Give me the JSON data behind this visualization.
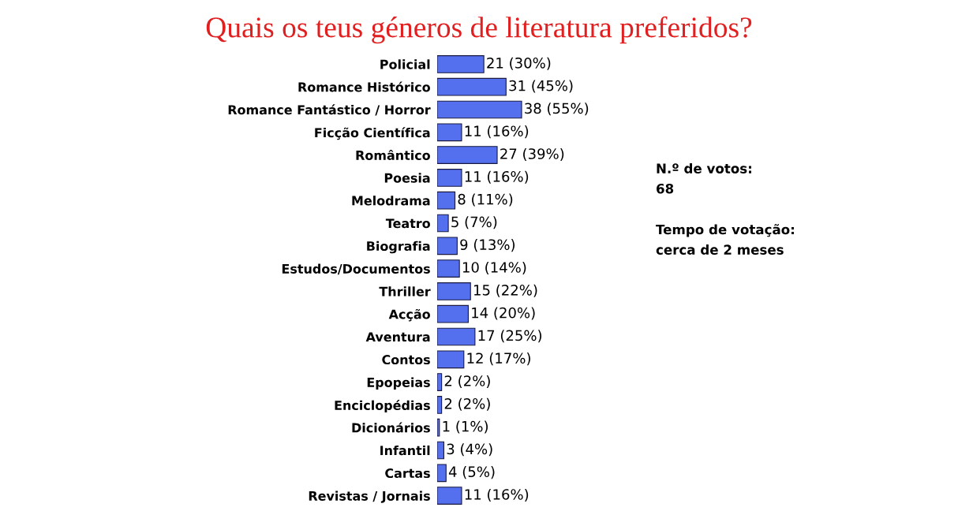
{
  "chart_data": {
    "type": "bar",
    "orientation": "horizontal",
    "title": "Quais os teus géneros de literatura preferidos?",
    "categories": [
      "Policial",
      "Romance Histórico",
      "Romance Fantástico / Horror",
      "Ficção Científica",
      "Romântico",
      "Poesia",
      "Melodrama",
      "Teatro",
      "Biografia",
      "Estudos/Documentos",
      "Thriller",
      "Acção",
      "Aventura",
      "Contos",
      "Epopeias",
      "Enciclopédias",
      "Dicionários",
      "Infantil",
      "Cartas",
      "Revistas / Jornais"
    ],
    "values": [
      21,
      31,
      38,
      11,
      27,
      11,
      8,
      5,
      9,
      10,
      15,
      14,
      17,
      12,
      2,
      2,
      1,
      3,
      4,
      11
    ],
    "value_labels": [
      "21 (30%)",
      "31 (45%)",
      "38 (55%)",
      "11 (16%)",
      "27 (39%)",
      "11 (16%)",
      "8 (11%)",
      "5 (7%)",
      "9 (13%)",
      "10 (14%)",
      "15 (22%)",
      "14 (20%)",
      "17 (25%)",
      "12 (17%)",
      "2 (2%)",
      "2 (2%)",
      "1 (1%)",
      "3 (4%)",
      "4 (5%)",
      "11 (16%)"
    ],
    "color": "#5470ee",
    "annotations": [
      "N.º de votos:\n68\n\nTempo de votação:\ncerca de 2 meses"
    ],
    "grid": false,
    "legend": false
  }
}
